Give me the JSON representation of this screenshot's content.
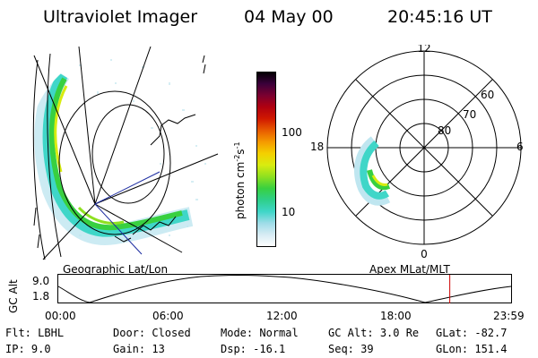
{
  "header": {
    "instrument": "Ultraviolet Imager",
    "date": "04 May 00",
    "time": "20:45:16 UT"
  },
  "left_panel": {
    "caption": "Geographic Lat/Lon"
  },
  "colorbar": {
    "unit": "photon cm",
    "unit_exp1": "-2",
    "unit_mid": "s",
    "unit_exp2": "-1",
    "scale": "log",
    "ticks": [
      "100",
      "10"
    ],
    "colors": [
      "#ffffff",
      "#d8ecf4",
      "#9fdce8",
      "#3fd6c8",
      "#2ecf8a",
      "#38d040",
      "#8ee020",
      "#d8ec10",
      "#f4d000",
      "#f59a00",
      "#e85a00",
      "#d01800",
      "#b00010",
      "#7a0030",
      "#3a003a",
      "#000000"
    ]
  },
  "polar_plot": {
    "caption": "Apex MLat/MLT",
    "mlt_labels": {
      "top": "12",
      "left": "18",
      "right": "6",
      "bottom": "0"
    },
    "lat_labels": [
      "60",
      "70",
      "80"
    ]
  },
  "orbit_plot": {
    "ylabel": "GC Alt",
    "ytick_top": "9.0",
    "ytick_bottom": "1.8",
    "xticks": [
      "00:00",
      "06:00",
      "12:00",
      "18:00",
      "23:59"
    ],
    "current_time_marker_hours": 20.75,
    "marker_color": "#cc0000"
  },
  "info": [
    [
      {
        "label": "Flt:",
        "value": "LBHL"
      },
      {
        "label": "Door:",
        "value": "Closed"
      },
      {
        "label": "Mode:",
        "value": "Normal"
      },
      {
        "label": "GC Alt:",
        "value": "3.0 Re"
      },
      {
        "label": "GLat:",
        "value": "-82.7"
      }
    ],
    [
      {
        "label": "IP:",
        "value": "9.0"
      },
      {
        "label": "Gain:",
        "value": "13"
      },
      {
        "label": "Dsp:",
        "value": "-16.1"
      },
      {
        "label": "Seq:",
        "value": "39"
      },
      {
        "label": "GLon:",
        "value": "151.4"
      }
    ]
  ]
}
